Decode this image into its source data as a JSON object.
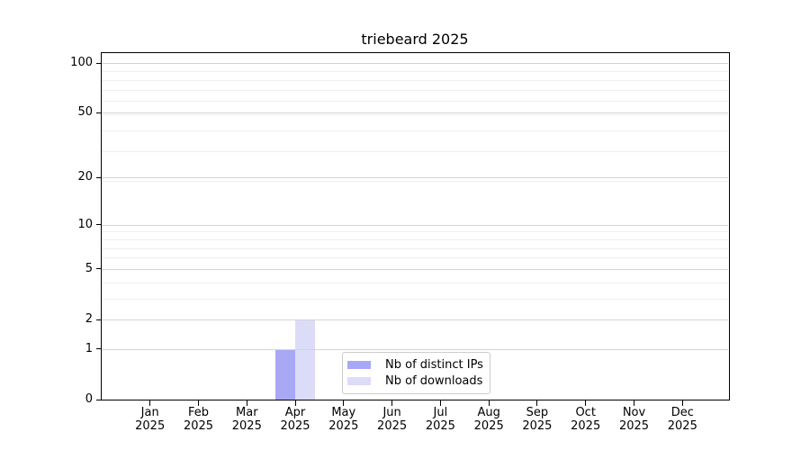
{
  "chart_data": {
    "type": "bar",
    "title": "triebeard 2025",
    "categories": [
      "Jan 2025",
      "Feb 2025",
      "Mar 2025",
      "Apr 2025",
      "May 2025",
      "Jun 2025",
      "Jul 2025",
      "Aug 2025",
      "Sep 2025",
      "Oct 2025",
      "Nov 2025",
      "Dec 2025"
    ],
    "series": [
      {
        "name": "Nb of distinct IPs",
        "color": "#a8a8f5",
        "values": [
          0,
          0,
          0,
          1,
          0,
          0,
          0,
          0,
          0,
          0,
          0,
          0
        ]
      },
      {
        "name": "Nb of downloads",
        "color": "#dcdcf8",
        "values": [
          0,
          0,
          0,
          2,
          0,
          0,
          0,
          0,
          0,
          0,
          0,
          0
        ]
      }
    ],
    "xlabel": "",
    "ylabel": "",
    "y_scale": "log1p",
    "y_ticks": [
      0,
      1,
      2,
      5,
      10,
      20,
      50,
      100
    ],
    "y_minor_gridlines": [
      3,
      4,
      6,
      7,
      8,
      9,
      19,
      29,
      39,
      49,
      59,
      69,
      79,
      89
    ],
    "ylim": [
      0,
      115
    ],
    "grid": true,
    "legend": {
      "position": "lower center",
      "entries": [
        "Nb of distinct IPs",
        "Nb of downloads"
      ]
    },
    "colors": {
      "major_grid": "#d4d4d4",
      "minor_grid": "#eeeeee",
      "spine": "#000000",
      "legend_border": "#cccccc",
      "text": "#000000",
      "background": "#ffffff"
    }
  }
}
